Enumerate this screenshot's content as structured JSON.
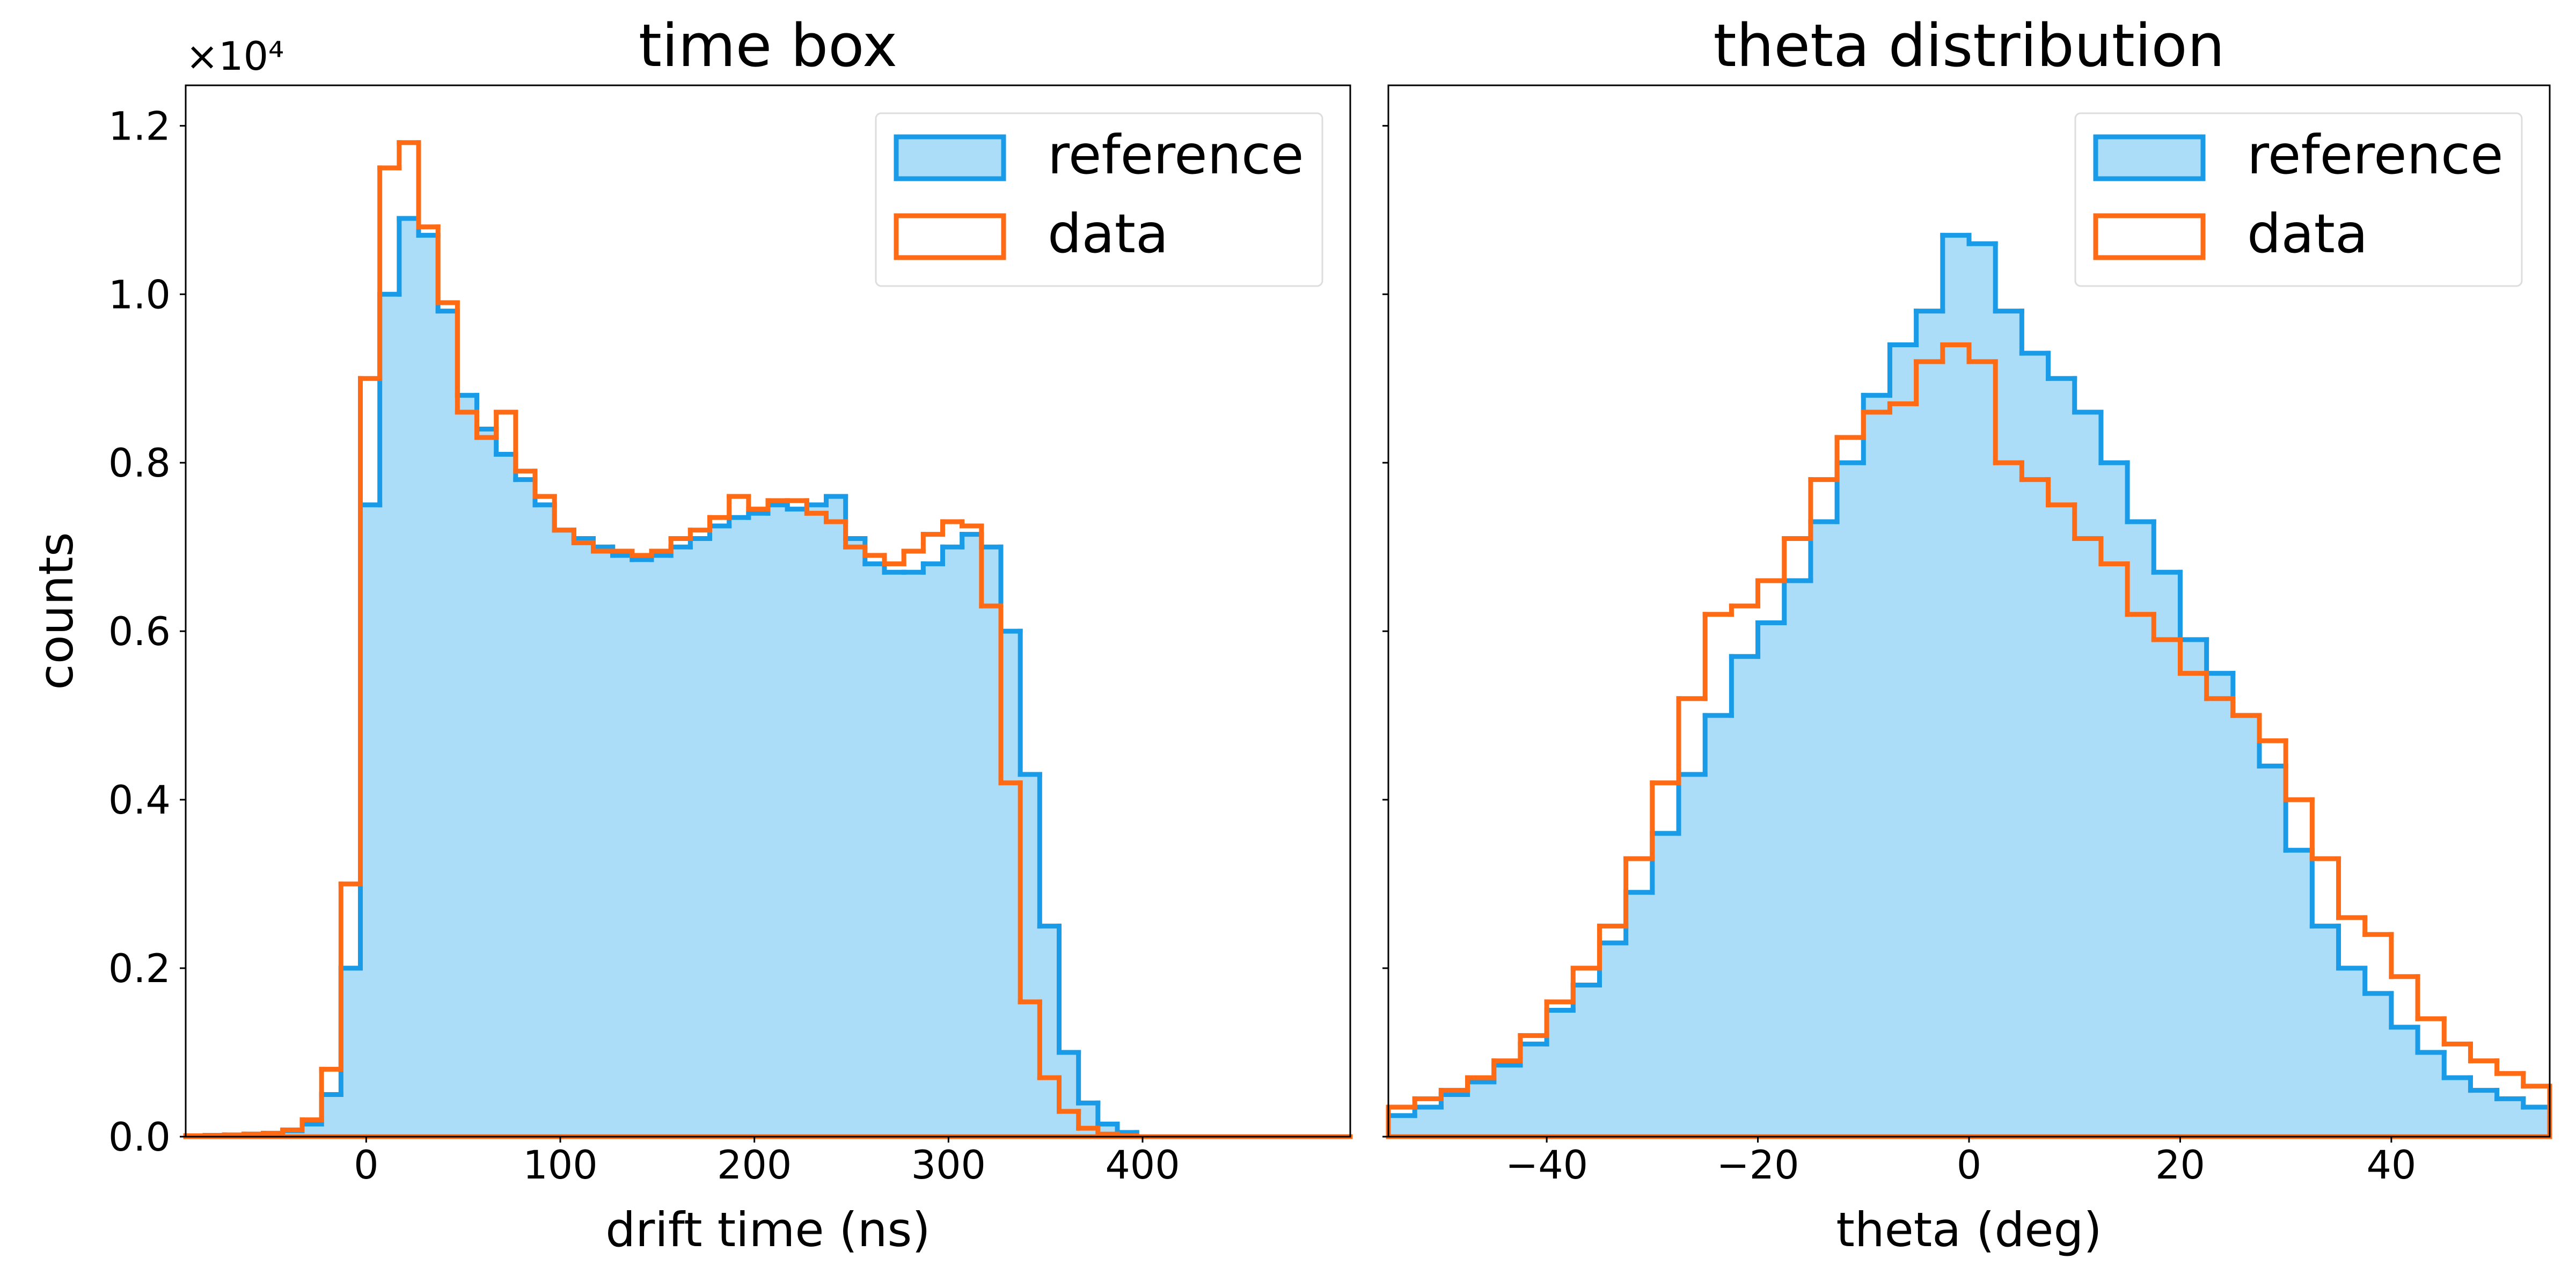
{
  "chart_data": [
    {
      "type": "histogram",
      "title": "time box",
      "xlabel": "drift time (ns)",
      "ylabel": "counts",
      "y_offset_text": "×10⁴",
      "bins": [
        -93,
        -83,
        -73,
        -63,
        -53,
        -43,
        -33,
        -23,
        -13,
        -3,
        7,
        17,
        27,
        37,
        47,
        57,
        67,
        77,
        87,
        97,
        107,
        117,
        127,
        137,
        147,
        157,
        167,
        177,
        187,
        197,
        207,
        217,
        227,
        237,
        247,
        257,
        267,
        277,
        287,
        297,
        307,
        317,
        327,
        337,
        347,
        357,
        367,
        377,
        387,
        397,
        407,
        417,
        427,
        437,
        447,
        457,
        467,
        477,
        487,
        497,
        507
      ],
      "series": [
        {
          "name": "reference",
          "color": "#1a9be8",
          "fill": "#abddf9",
          "values": [
            10,
            15,
            20,
            30,
            40,
            70,
            150,
            500,
            2000,
            7500,
            10000,
            10900,
            10700,
            9800,
            8800,
            8400,
            8100,
            7800,
            7500,
            7200,
            7100,
            7000,
            6900,
            6850,
            6900,
            7000,
            7100,
            7250,
            7350,
            7400,
            7500,
            7450,
            7500,
            7600,
            7100,
            6800,
            6700,
            6700,
            6800,
            7000,
            7150,
            7000,
            6000,
            4300,
            2500,
            1000,
            400,
            150,
            50,
            0,
            0,
            0,
            0,
            0,
            0,
            0,
            0,
            0,
            0,
            0
          ]
        },
        {
          "name": "data",
          "color": "#ff6a14",
          "values": [
            10,
            15,
            20,
            30,
            40,
            80,
            200,
            800,
            3000,
            9000,
            11500,
            11800,
            10800,
            9900,
            8600,
            8300,
            8600,
            7900,
            7600,
            7200,
            7050,
            6950,
            6950,
            6900,
            6950,
            7100,
            7200,
            7350,
            7600,
            7450,
            7550,
            7550,
            7400,
            7300,
            7000,
            6900,
            6800,
            6950,
            7150,
            7300,
            7250,
            6300,
            4200,
            1600,
            700,
            300,
            100,
            30,
            10,
            0,
            0,
            0,
            0,
            0,
            0,
            0,
            0,
            0,
            0,
            0
          ]
        }
      ],
      "xlim": [
        -93,
        507
      ],
      "ylim": [
        0,
        12480
      ],
      "xticks": [
        0,
        100,
        200,
        300,
        400
      ],
      "yticks": [
        {
          "value": 0,
          "label": "0.0"
        },
        {
          "value": 2000,
          "label": "0.2"
        },
        {
          "value": 4000,
          "label": "0.4"
        },
        {
          "value": 6000,
          "label": "0.6"
        },
        {
          "value": 8000,
          "label": "0.8"
        },
        {
          "value": 10000,
          "label": "1.0"
        },
        {
          "value": 12000,
          "label": "1.2"
        }
      ],
      "legend": "upper right"
    },
    {
      "type": "histogram",
      "title": "theta distribution",
      "xlabel": "theta (deg)",
      "bins": [
        -55,
        -52.5,
        -50,
        -47.5,
        -45,
        -42.5,
        -40,
        -37.5,
        -35,
        -32.5,
        -30,
        -27.5,
        -25,
        -22.5,
        -20,
        -17.5,
        -15,
        -12.5,
        -10,
        -7.5,
        -5,
        -2.5,
        0,
        2.5,
        5,
        7.5,
        10,
        12.5,
        15,
        17.5,
        20,
        22.5,
        25,
        27.5,
        30,
        32.5,
        35,
        37.5,
        40,
        42.5,
        45,
        47.5,
        50,
        52.5,
        55
      ],
      "series": [
        {
          "name": "reference",
          "color": "#1a9be8",
          "fill": "#abddf9",
          "values": [
            250,
            350,
            500,
            650,
            850,
            1100,
            1500,
            1800,
            2300,
            2900,
            3600,
            4300,
            5000,
            5700,
            6100,
            6600,
            7300,
            8000,
            8800,
            9400,
            9800,
            10700,
            10600,
            9800,
            9300,
            9000,
            8600,
            8000,
            7300,
            6700,
            5900,
            5500,
            5000,
            4400,
            3400,
            2500,
            2000,
            1700,
            1300,
            1000,
            700,
            550,
            450,
            350
          ]
        },
        {
          "name": "data",
          "color": "#ff6a14",
          "values": [
            350,
            450,
            550,
            700,
            900,
            1200,
            1600,
            2000,
            2500,
            3300,
            4200,
            5200,
            6200,
            6300,
            6600,
            7100,
            7800,
            8300,
            8600,
            8700,
            9200,
            9400,
            9200,
            8000,
            7800,
            7500,
            7100,
            6800,
            6200,
            5900,
            5500,
            5200,
            5000,
            4700,
            4000,
            3300,
            2600,
            2400,
            1900,
            1400,
            1100,
            900,
            750,
            600
          ]
        }
      ],
      "xlim": [
        -55,
        55
      ],
      "ylim": [
        0,
        12480
      ],
      "xticks": [
        {
          "value": -40,
          "label": "−40"
        },
        {
          "value": -20,
          "label": "−20"
        },
        0,
        20,
        40
      ],
      "yticks": [
        0,
        2000,
        4000,
        6000,
        8000,
        10000,
        12000
      ],
      "legend": "upper right"
    }
  ]
}
